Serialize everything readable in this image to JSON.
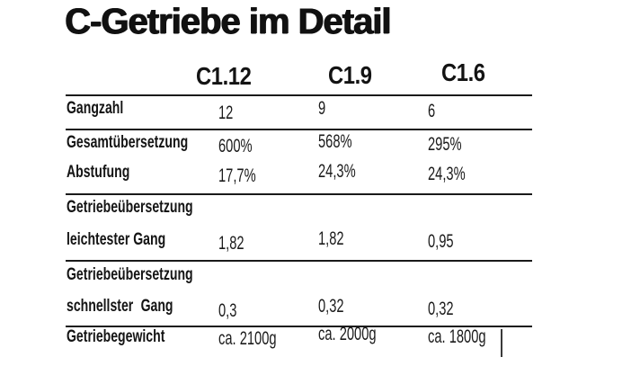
{
  "title": "C-Getriebe im Detail",
  "chart_data": {
    "type": "table",
    "title": "C-Getriebe im Detail",
    "columns": [
      "C1.12",
      "C1.9",
      "C1.6"
    ],
    "rows": [
      {
        "label": "Gangzahl",
        "values": [
          "12",
          "9",
          "6"
        ]
      },
      {
        "label": "Gesamtübersetzung",
        "values": [
          "600%",
          "568%",
          "295%"
        ]
      },
      {
        "label": "Abstufung",
        "values": [
          "17,7%",
          "24,3%",
          "24,3%"
        ]
      },
      {
        "label": "Getriebeübersetzung",
        "label2": "leichtester Gang",
        "values": [
          "1,82",
          "1,82",
          "0,95"
        ]
      },
      {
        "label": "Getriebeübersetzung",
        "label2": "schnellster Gang",
        "values": [
          "0,3",
          "0,32",
          "0,32"
        ]
      },
      {
        "label": "Getriebegewicht",
        "values": [
          "ca. 2100g",
          "ca. 2000g",
          "ca. 1800g"
        ]
      }
    ]
  },
  "colors": {
    "text": "#141414",
    "rule": "#1a1a1a",
    "background": "#ffffff"
  }
}
